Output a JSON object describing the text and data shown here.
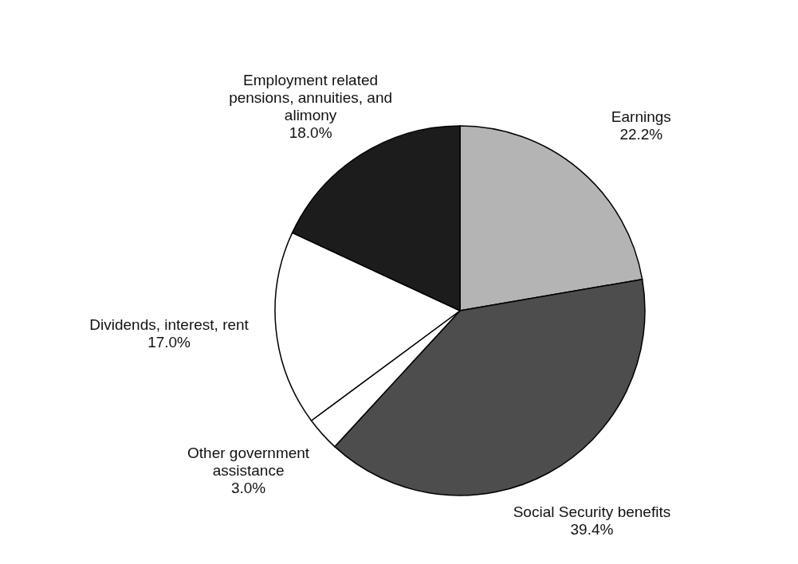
{
  "chart_data": {
    "type": "pie",
    "categories": [
      "Earnings",
      "Social Security benefits",
      "Other government assistance",
      "Dividends, interest, rent",
      "Employment related pensions, annuities, and alimony"
    ],
    "values": [
      22.2,
      39.4,
      3.0,
      17.0,
      18.0
    ],
    "value_labels": [
      "22.2%",
      "39.4%",
      "3.0%",
      "17.0%",
      "18.0%"
    ],
    "colors": [
      "#b4b4b4",
      "#4d4d4d",
      "#ffffff",
      "#ffffff",
      "#1c1c1c"
    ]
  }
}
